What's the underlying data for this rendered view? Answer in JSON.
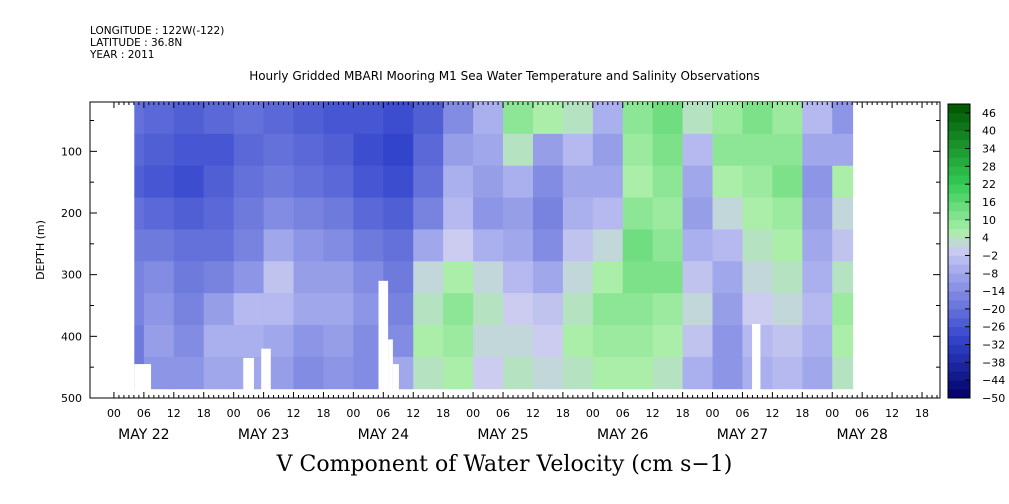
{
  "header": {
    "longitude": "LONGITUDE : 122W(-122)",
    "latitude": "LATITUDE : 36.8N",
    "year": "YEAR : 2011"
  },
  "chart_data": {
    "type": "heatmap",
    "title": "Hourly Gridded MBARI Mooring M1 Sea Water Temperature and Salinity Observations",
    "xlabel": "V Component of Water Velocity (cm s−1)",
    "ylabel": "DEPTH (m)",
    "y_axis": {
      "ticks": [
        100,
        200,
        300,
        400,
        500
      ],
      "range": [
        20,
        500
      ],
      "inverted": true
    },
    "x_axis": {
      "hour_ticks": [
        "00",
        "06",
        "12",
        "18"
      ],
      "days": [
        "MAY 22",
        "MAY 23",
        "MAY 24",
        "MAY 25",
        "MAY 26",
        "MAY 27",
        "MAY 28"
      ],
      "range_days": [
        -0.2,
        6.9
      ]
    },
    "colorbar": {
      "labels": [
        "46",
        "40",
        "34",
        "28",
        "22",
        "16",
        "10",
        "4",
        "−2",
        "−8",
        "−14",
        "−20",
        "−26",
        "−32",
        "−38",
        "−44",
        "−50"
      ],
      "range": [
        -50,
        49
      ],
      "colors": {
        "neg_dark": "#000066",
        "neg_mid": "#3344cc",
        "neg_light": "#aab0ee",
        "zero": "#ccccf0",
        "pos_light": "#aaeeaa",
        "pos_mid": "#33cc55",
        "pos_dark": "#005500"
      }
    },
    "data_extent": {
      "start_day": 0.17,
      "end_day": 6.17,
      "min_depth": 20,
      "max_depth": 485
    },
    "column_blocks": [
      {
        "x0": 0.17,
        "x1": 0.25,
        "v": [
          -20,
          -22,
          -24,
          -20,
          -18,
          -16,
          -16,
          -18,
          -18
        ]
      },
      {
        "x0": 0.25,
        "x1": 0.5,
        "v": [
          -22,
          -24,
          -26,
          -22,
          -18,
          -14,
          -12,
          -10,
          -12
        ]
      },
      {
        "x0": 0.5,
        "x1": 0.75,
        "v": [
          -24,
          -26,
          -28,
          -24,
          -20,
          -18,
          -16,
          -14,
          -12
        ]
      },
      {
        "x0": 0.75,
        "x1": 1.0,
        "v": [
          -22,
          -26,
          -24,
          -22,
          -20,
          -16,
          -10,
          -6,
          -8
        ]
      },
      {
        "x0": 1.0,
        "x1": 1.25,
        "v": [
          -20,
          -22,
          -20,
          -18,
          -16,
          -12,
          -4,
          -6,
          -8
        ]
      },
      {
        "x0": 1.25,
        "x1": 1.5,
        "v": [
          -22,
          -20,
          -18,
          -14,
          -8,
          -2,
          -4,
          -8,
          -10
        ]
      },
      {
        "x0": 1.5,
        "x1": 1.75,
        "v": [
          -24,
          -22,
          -20,
          -16,
          -12,
          -10,
          -8,
          -12,
          -14
        ]
      },
      {
        "x0": 1.75,
        "x1": 2.0,
        "v": [
          -26,
          -24,
          -22,
          -18,
          -14,
          -10,
          -8,
          -10,
          -12
        ]
      },
      {
        "x0": 2.0,
        "x1": 2.25,
        "v": [
          -26,
          -28,
          -26,
          -22,
          -18,
          -14,
          -12,
          -14,
          -14
        ]
      },
      {
        "x0": 2.25,
        "x1": 2.5,
        "v": [
          -28,
          -30,
          -28,
          -24,
          -20,
          -18,
          -16,
          -14,
          -8
        ]
      },
      {
        "x0": 2.5,
        "x1": 2.75,
        "v": [
          -24,
          -22,
          -20,
          -16,
          -8,
          2,
          4,
          6,
          4
        ]
      },
      {
        "x0": 2.75,
        "x1": 3.0,
        "v": [
          -14,
          -10,
          -6,
          -4,
          0,
          6,
          10,
          8,
          6
        ]
      },
      {
        "x0": 3.0,
        "x1": 3.25,
        "v": [
          -6,
          -8,
          -10,
          -12,
          -6,
          2,
          4,
          2,
          0
        ]
      },
      {
        "x0": 3.25,
        "x1": 3.5,
        "v": [
          10,
          4,
          -6,
          -10,
          -8,
          -4,
          0,
          2,
          4
        ]
      },
      {
        "x0": 3.5,
        "x1": 3.75,
        "v": [
          6,
          -10,
          -14,
          -16,
          -14,
          -8,
          -2,
          0,
          2
        ]
      },
      {
        "x0": 3.75,
        "x1": 4.0,
        "v": [
          4,
          -4,
          -8,
          -6,
          -2,
          2,
          4,
          6,
          4
        ]
      },
      {
        "x0": 4.0,
        "x1": 4.25,
        "v": [
          -6,
          -10,
          -8,
          -4,
          2,
          6,
          10,
          8,
          6
        ]
      },
      {
        "x0": 4.25,
        "x1": 4.5,
        "v": [
          10,
          8,
          6,
          10,
          14,
          12,
          10,
          8,
          6
        ]
      },
      {
        "x0": 4.5,
        "x1": 4.75,
        "v": [
          14,
          12,
          10,
          8,
          10,
          12,
          8,
          6,
          4
        ]
      },
      {
        "x0": 4.75,
        "x1": 5.0,
        "v": [
          4,
          -4,
          -8,
          -10,
          -6,
          -2,
          2,
          -2,
          -6
        ]
      },
      {
        "x0": 5.0,
        "x1": 5.25,
        "v": [
          8,
          10,
          6,
          2,
          -4,
          -8,
          -10,
          -12,
          -12
        ]
      },
      {
        "x0": 5.25,
        "x1": 5.5,
        "v": [
          12,
          10,
          8,
          6,
          4,
          2,
          0,
          -4,
          -6
        ]
      },
      {
        "x0": 5.5,
        "x1": 5.75,
        "v": [
          8,
          10,
          12,
          8,
          6,
          4,
          2,
          -2,
          -4
        ]
      },
      {
        "x0": 5.75,
        "x1": 6.0,
        "v": [
          -4,
          -8,
          -12,
          -10,
          -8,
          -6,
          -4,
          -6,
          -8
        ]
      },
      {
        "x0": 6.0,
        "x1": 6.17,
        "v": [
          -12,
          -8,
          6,
          2,
          -2,
          4,
          8,
          6,
          4
        ]
      }
    ],
    "missing_regions": [
      {
        "x0": 0.17,
        "x1": 0.31,
        "d0": 445,
        "d1": 485
      },
      {
        "x0": 1.08,
        "x1": 1.17,
        "d0": 435,
        "d1": 485
      },
      {
        "x0": 1.23,
        "x1": 1.31,
        "d0": 420,
        "d1": 485
      },
      {
        "x0": 2.21,
        "x1": 2.29,
        "d0": 310,
        "d1": 485
      },
      {
        "x0": 2.29,
        "x1": 2.33,
        "d0": 405,
        "d1": 485
      },
      {
        "x0": 2.33,
        "x1": 2.38,
        "d0": 445,
        "d1": 485
      },
      {
        "x0": 5.33,
        "x1": 5.4,
        "d0": 380,
        "d1": 485
      }
    ]
  }
}
